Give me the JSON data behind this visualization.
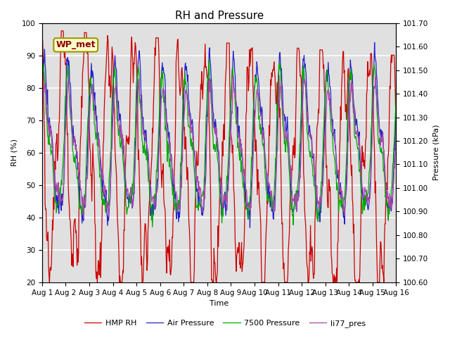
{
  "title": "RH and Pressure",
  "xlabel": "Time",
  "ylabel_left": "RH (%)",
  "ylabel_right": "Pressure (kPa)",
  "ylim_left": [
    20,
    100
  ],
  "ylim_right": [
    100.6,
    101.7
  ],
  "yticks_left": [
    20,
    30,
    40,
    50,
    60,
    70,
    80,
    90,
    100
  ],
  "yticks_right": [
    100.6,
    100.7,
    100.8,
    100.9,
    101.0,
    101.1,
    101.2,
    101.3,
    101.4,
    101.5,
    101.6,
    101.7
  ],
  "xtick_labels": [
    "Aug 1",
    "Aug 2",
    "Aug 3",
    "Aug 4",
    "Aug 5",
    "Aug 6",
    "Aug 7",
    "Aug 8",
    "Aug 9",
    "Aug 10",
    "Aug 11",
    "Aug 12",
    "Aug 13",
    "Aug 14",
    "Aug 15",
    "Aug 16"
  ],
  "legend_labels": [
    "HMP RH",
    "Air Pressure",
    "7500 Pressure",
    "li77_pres"
  ],
  "line_colors": [
    "#cc0000",
    "#2222cc",
    "#00aa00",
    "#aa44aa"
  ],
  "annotation_text": "WP_met",
  "bg_color": "#e0e0e0",
  "grid_color": "white",
  "title_fontsize": 11,
  "label_fontsize": 8,
  "tick_fontsize": 7.5,
  "legend_fontsize": 8
}
